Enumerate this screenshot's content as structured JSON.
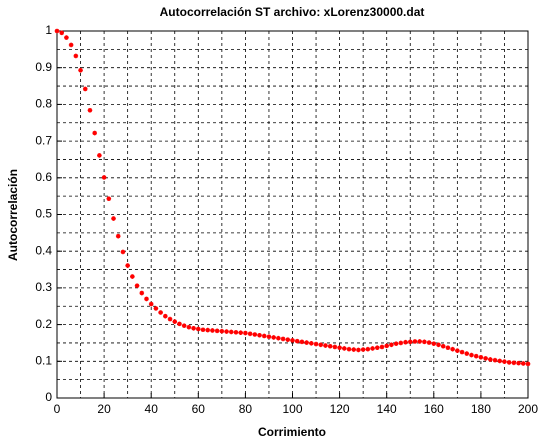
{
  "chart_data": {
    "type": "scatter",
    "title": "Autocorrelación ST archivo:  xLorenz30000.dat",
    "x_label": "Corrimiento",
    "y_label": "Autocorrelación",
    "xlim": [
      0,
      200
    ],
    "ylim": [
      0,
      1
    ],
    "xticks": [
      0,
      20,
      40,
      60,
      80,
      100,
      120,
      140,
      160,
      180,
      200
    ],
    "yticks": [
      0,
      0.1,
      0.2,
      0.3,
      0.4,
      0.5,
      0.6,
      0.7,
      0.8,
      0.9,
      1
    ],
    "grid": true,
    "minor_grid": true,
    "series": [
      {
        "color": "#ff0000",
        "x": [
          0,
          2,
          4,
          6,
          8,
          10,
          12,
          14,
          16,
          18,
          20,
          22,
          24,
          26,
          28,
          30,
          32,
          34,
          36,
          38,
          40,
          42,
          44,
          46,
          48,
          50,
          52,
          54,
          56,
          58,
          60,
          62,
          64,
          66,
          68,
          70,
          72,
          74,
          76,
          78,
          80,
          82,
          84,
          86,
          88,
          90,
          92,
          94,
          96,
          98,
          100,
          102,
          104,
          106,
          108,
          110,
          112,
          114,
          116,
          118,
          120,
          122,
          124,
          126,
          128,
          130,
          132,
          134,
          136,
          138,
          140,
          142,
          144,
          146,
          148,
          150,
          152,
          154,
          156,
          158,
          160,
          162,
          164,
          166,
          168,
          170,
          172,
          174,
          176,
          178,
          180,
          182,
          184,
          186,
          188,
          190,
          192,
          194,
          196,
          198,
          200
        ],
        "values": [
          1.0,
          0.995,
          0.982,
          0.962,
          0.932,
          0.893,
          0.842,
          0.784,
          0.722,
          0.661,
          0.601,
          0.543,
          0.489,
          0.441,
          0.398,
          0.361,
          0.331,
          0.306,
          0.286,
          0.27,
          0.256,
          0.244,
          0.233,
          0.223,
          0.215,
          0.208,
          0.202,
          0.197,
          0.193,
          0.19,
          0.188,
          0.186,
          0.185,
          0.184,
          0.183,
          0.182,
          0.181,
          0.18,
          0.179,
          0.178,
          0.177,
          0.175,
          0.173,
          0.171,
          0.169,
          0.167,
          0.165,
          0.163,
          0.161,
          0.159,
          0.157,
          0.155,
          0.153,
          0.151,
          0.149,
          0.147,
          0.145,
          0.143,
          0.141,
          0.139,
          0.137,
          0.135,
          0.133,
          0.132,
          0.131,
          0.132,
          0.133,
          0.135,
          0.137,
          0.139,
          0.142,
          0.145,
          0.148,
          0.15,
          0.152,
          0.153,
          0.154,
          0.154,
          0.153,
          0.151,
          0.148,
          0.145,
          0.141,
          0.137,
          0.133,
          0.129,
          0.125,
          0.121,
          0.117,
          0.114,
          0.111,
          0.108,
          0.105,
          0.103,
          0.101,
          0.099,
          0.097,
          0.096,
          0.095,
          0.094,
          0.093
        ]
      }
    ]
  }
}
